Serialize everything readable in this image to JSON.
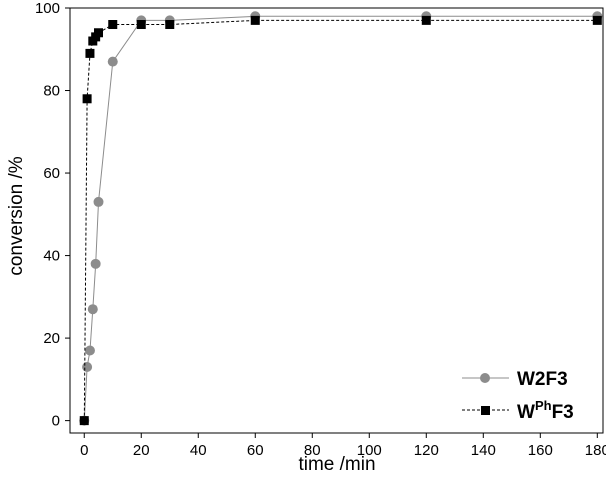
{
  "chart_data": {
    "type": "line",
    "xlabel": "time /min",
    "ylabel": "conversion /%",
    "xlim": [
      -5,
      182
    ],
    "ylim": [
      -3,
      100
    ],
    "xticks": [
      0,
      20,
      40,
      60,
      80,
      100,
      120,
      140,
      160,
      180
    ],
    "yticks": [
      0,
      20,
      40,
      60,
      80,
      100
    ],
    "grid": false,
    "legend_position": "bottom-right",
    "series": [
      {
        "key": "w2f3",
        "name": "W2F3",
        "color": "#8c8c8c",
        "marker": "circle",
        "line_style": "solid",
        "x": [
          0,
          1,
          2,
          3,
          4,
          5,
          10,
          20,
          30,
          60,
          120,
          180
        ],
        "y": [
          0,
          13,
          17,
          27,
          38,
          53,
          87,
          97,
          97,
          98,
          98,
          98
        ]
      },
      {
        "key": "wphf3",
        "name": "W",
        "name_sup": "Ph",
        "name_suffix": "F3",
        "color": "#000000",
        "marker": "square",
        "line_style": "dashed",
        "x": [
          0,
          1,
          2,
          3,
          4,
          5,
          10,
          20,
          30,
          60,
          120,
          180
        ],
        "y": [
          0,
          78,
          89,
          92,
          93,
          94,
          96,
          96,
          96,
          97,
          97,
          97
        ]
      }
    ]
  }
}
